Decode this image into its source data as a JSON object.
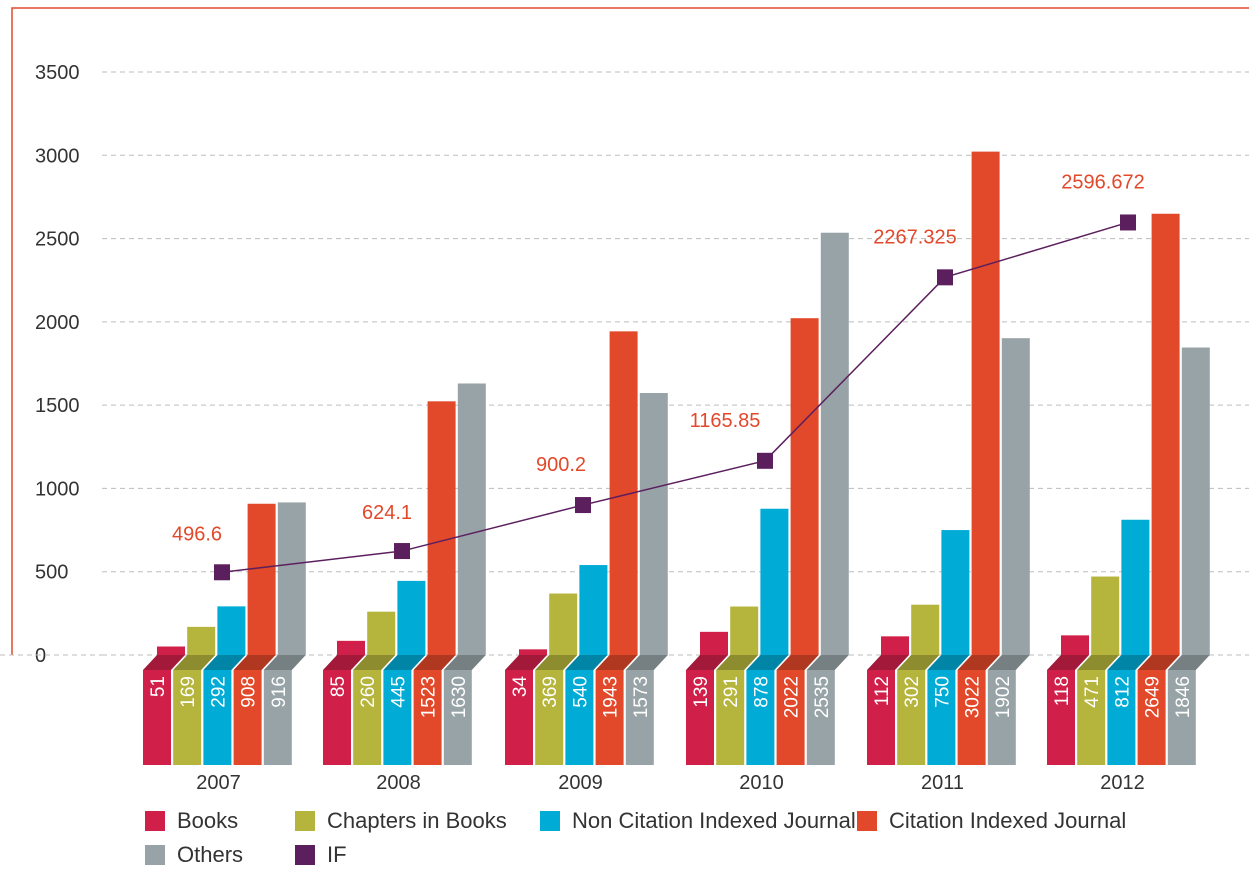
{
  "chart_data": {
    "type": "bar",
    "categories": [
      "2007",
      "2008",
      "2009",
      "2010",
      "2011",
      "2012"
    ],
    "series": [
      {
        "name": "Books",
        "color": "#d0204a",
        "values": [
          51,
          85,
          34,
          139,
          112,
          118
        ]
      },
      {
        "name": "Chapters in Books",
        "color": "#b5b43c",
        "values": [
          169,
          260,
          369,
          291,
          302,
          471
        ]
      },
      {
        "name": "Non Citation Indexed Journal",
        "color": "#00abd5",
        "values": [
          292,
          445,
          540,
          878,
          750,
          812
        ]
      },
      {
        "name": "Citation Indexed Journal",
        "color": "#e2482a",
        "values": [
          908,
          1523,
          1943,
          2022,
          3022,
          2649
        ]
      },
      {
        "name": "Others",
        "color": "#97a3a6",
        "values": [
          916,
          1630,
          1573,
          2535,
          1902,
          1846
        ]
      }
    ],
    "line_series": {
      "name": "IF",
      "color": "#5b1f5e",
      "type": "line",
      "values": [
        496.6,
        624.1,
        900.2,
        1165.85,
        2267.325,
        2596.672
      ]
    },
    "y_ticks": [
      "0",
      "500",
      "1000",
      "1500",
      "2000",
      "2500",
      "3000",
      "3500"
    ],
    "ylim": [
      0,
      3500
    ],
    "grid": true,
    "legend_position": "bottom",
    "title": "",
    "xlabel": "",
    "ylabel": ""
  }
}
